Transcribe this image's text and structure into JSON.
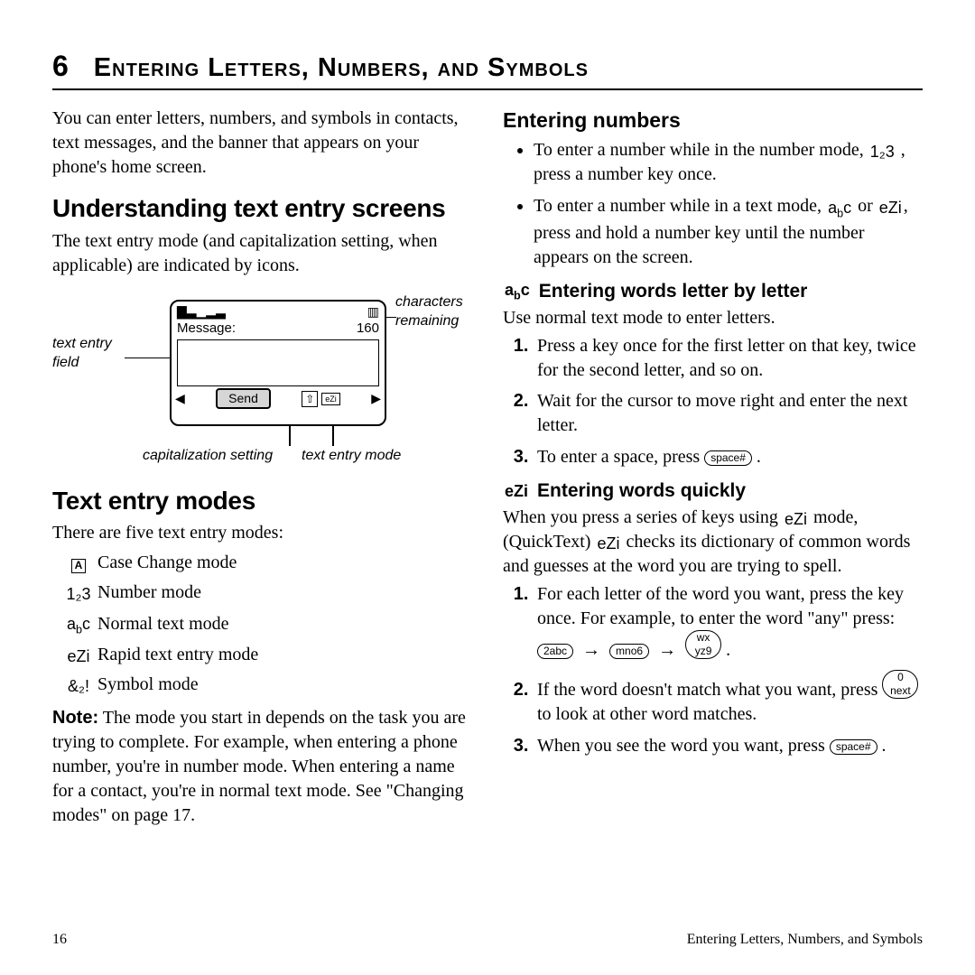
{
  "chapter_num": "6",
  "chapter_title": "Entering Letters, Numbers, and Symbols",
  "intro": "You can enter letters, numbers, and symbols in contacts, text messages, and the banner that appears on your phone's home screen.",
  "sec_understanding_title": "Understanding text entry screens",
  "sec_understanding_body": "The text entry mode (and capitalization setting, when applicable) are indicated by icons.",
  "diagram": {
    "label_text_entry_field": "text entry field",
    "label_chars_remaining": "characters remaining",
    "label_cap_setting": "capitalization setting",
    "label_text_mode": "text entry mode",
    "screen_msg": "Message:",
    "screen_count": "160",
    "screen_send": "Send"
  },
  "sec_modes_title": "Text entry modes",
  "sec_modes_intro": "There are five text entry modes:",
  "modes": [
    {
      "icon_html": "<span class='ico-box'>A</span>",
      "label": "Case Change mode"
    },
    {
      "icon_html": "<span class='ico'>1₂3</span>",
      "label": "Number mode"
    },
    {
      "icon_html": "<span class='ico'>a<sub style='font-size:70%'>b</sub>c</span>",
      "label": "Normal text mode"
    },
    {
      "icon_html": "<span class='ico'>eZi</span>",
      "label": "Rapid text entry mode"
    },
    {
      "icon_html": "<span class='ico'>&amp;₂!</span>",
      "label": "Symbol mode"
    }
  ],
  "modes_note_label": "Note:",
  "modes_note": "The mode you start in depends on the task you are trying to complete. For example, when entering a phone number, you're in number mode. When entering a name for a contact, you're in normal text mode. See \"Changing modes\" on page 17.",
  "sec_numbers_title": "Entering numbers",
  "numbers_bullets": [
    "To enter a number while in the number mode, <span class='ico'>1₂3</span> , press a number key once.",
    "To enter a number while in a text mode, <span class='ico'>a<sub style='font-size:70%'>b</sub>c</span> or <span class='ico'>eZi</span>, press and hold a number key until the number appears on the screen."
  ],
  "sec_letter_title": "Entering words letter by letter",
  "sec_letter_icon": "a<sub style='font-size:70%'>b</sub>c",
  "sec_letter_intro": "Use normal text mode to enter letters.",
  "letter_steps": [
    "Press a key once for the first letter on that key, twice for the second letter, and so on.",
    "Wait for the cursor to move right and enter the next letter.",
    "To enter a space, press <span class='key'>space#</span> ."
  ],
  "sec_quick_title": "Entering words quickly",
  "sec_quick_icon": "eZi",
  "sec_quick_intro": "When you press a series of keys using <span class='ico'>eZi</span> mode, (QuickText) <span class='ico'>eZi</span> checks its dictionary of common words and guesses at the word you are trying to spell.",
  "quick_steps": [
    "For each letter of the word you want, press the key once. For example, to enter the word \"any\" press: <span class='key'>2abc</span> &nbsp;→&nbsp; <span class='key'>mno6</span> &nbsp;→&nbsp; <span class='key'>wx<br>yz9</span> .",
    "If the word doesn't match what you want, press <span class='key'>0<br>next</span> to look at other word matches.",
    "When you see the word you want, press <span class='key'>space#</span> ."
  ],
  "footer_page": "16",
  "footer_text": "Entering Letters, Numbers, and Symbols"
}
